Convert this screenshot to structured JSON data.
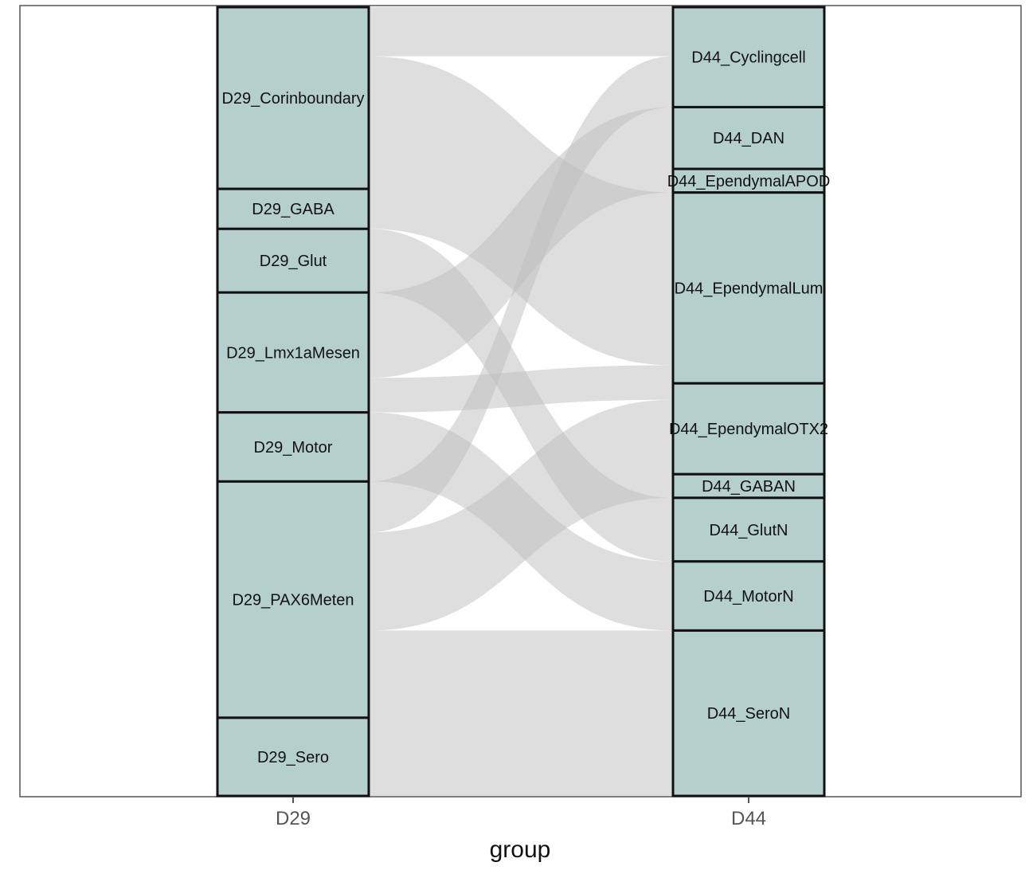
{
  "chart_data": {
    "type": "alluvial",
    "xlabel": "group",
    "axes": [
      "D29",
      "D44"
    ],
    "nodes": {
      "D29": [
        {
          "name": "D29_Corinboundary",
          "value": 10
        },
        {
          "name": "D29_GABA",
          "value": 2.2
        },
        {
          "name": "D29_Glut",
          "value": 3.5
        },
        {
          "name": "D29_Lmx1aMesen",
          "value": 6.6
        },
        {
          "name": "D29_Motor",
          "value": 3.8
        },
        {
          "name": "D29_PAX6Meten",
          "value": 13
        },
        {
          "name": "D29_Sero",
          "value": 4.3
        }
      ],
      "D44": [
        {
          "name": "D44_Cyclingcell",
          "value": 5.5
        },
        {
          "name": "D44_DAN",
          "value": 3.4
        },
        {
          "name": "D44_EpendymalAPOD",
          "value": 1.3
        },
        {
          "name": "D44_EpendymalLum",
          "value": 10.5
        },
        {
          "name": "D44_EpendymalOTX2",
          "value": 5
        },
        {
          "name": "D44_GABAN",
          "value": 1.3
        },
        {
          "name": "D44_GlutN",
          "value": 3.5
        },
        {
          "name": "D44_MotorN",
          "value": 3.8
        },
        {
          "name": "D44_SeroN",
          "value": 9.1
        }
      ]
    },
    "flows": [
      {
        "source": "D29_Corinboundary",
        "target": "D44_Cyclingcell",
        "value": 2.7
      },
      {
        "source": "D29_Corinboundary",
        "target": "D44_EpendymalLum",
        "value": 7.3
      },
      {
        "source": "D29_GABA",
        "target": "D44_EpendymalLum",
        "value": 2.2
      },
      {
        "source": "D29_Glut",
        "target": "D44_GlutN",
        "value": 3.5
      },
      {
        "source": "D29_Lmx1aMesen",
        "target": "D44_DAN",
        "value": 3.4
      },
      {
        "source": "D29_Lmx1aMesen",
        "target": "D44_EpendymalAPOD",
        "value": 1.3
      },
      {
        "source": "D29_Lmx1aMesen",
        "target": "D44_EpendymalLum",
        "value": 1.0
      },
      {
        "source": "D29_Lmx1aMesen",
        "target": "D44_EpendymalOTX2",
        "value": 0.9
      },
      {
        "source": "D29_Motor",
        "target": "D44_MotorN",
        "value": 3.8
      },
      {
        "source": "D29_PAX6Meten",
        "target": "D44_Cyclingcell",
        "value": 2.8
      },
      {
        "source": "D29_PAX6Meten",
        "target": "D44_EpendymalOTX2",
        "value": 4.1
      },
      {
        "source": "D29_PAX6Meten",
        "target": "D44_GABAN",
        "value": 1.3
      },
      {
        "source": "D29_PAX6Meten",
        "target": "D44_SeroN",
        "value": 4.8
      },
      {
        "source": "D29_Sero",
        "target": "D44_SeroN",
        "value": 4.3
      }
    ]
  }
}
